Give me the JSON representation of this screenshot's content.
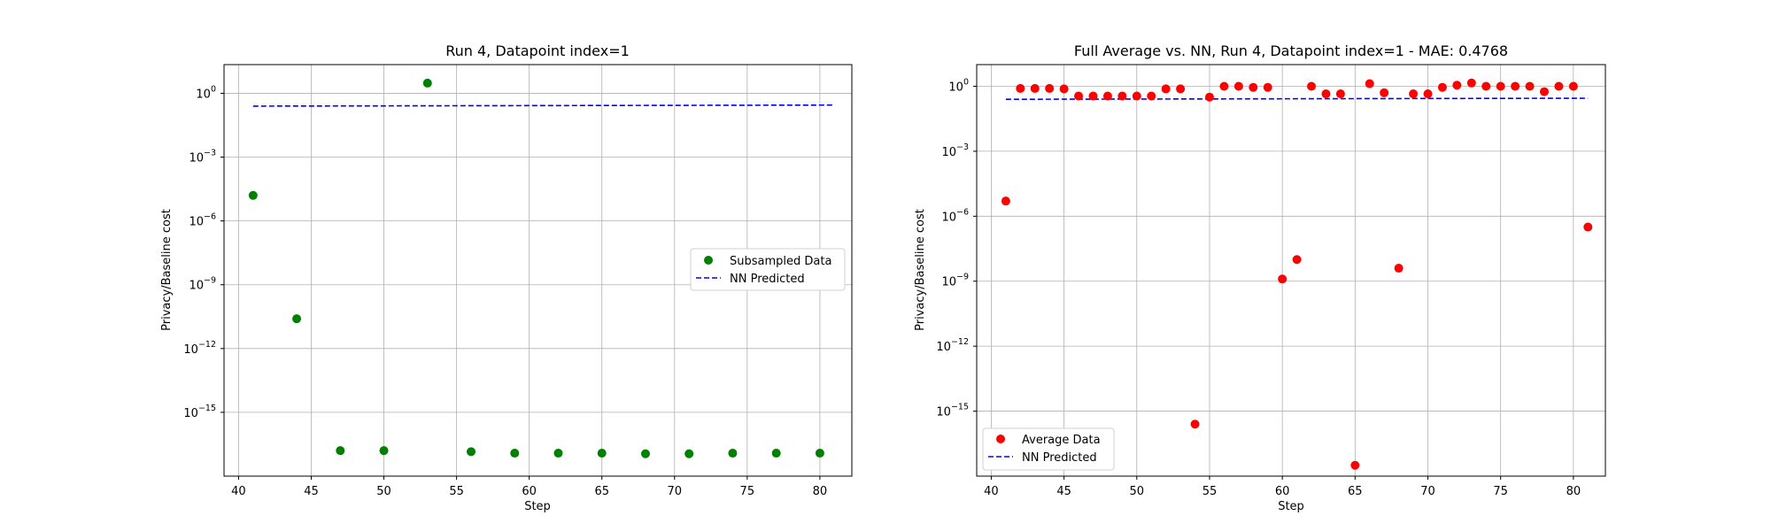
{
  "chart_data": [
    {
      "type": "scatter",
      "title": "Run 4, Datapoint index=1",
      "xlabel": "Step",
      "ylabel": "Privacy/Baseline cost",
      "xlim": [
        39.0,
        82.2
      ],
      "ylim_exp": [
        -18.0,
        1.35
      ],
      "yscale": "log",
      "grid": true,
      "legend_position": "center-right",
      "x_ticks": [
        40,
        45,
        50,
        55,
        60,
        65,
        70,
        75,
        80
      ],
      "y_ticks_exp": [
        0,
        -3,
        -6,
        -9,
        -12,
        -15
      ],
      "y_tick_labels": [
        "10^0",
        "10^-3",
        "10^-6",
        "10^-9",
        "10^-12",
        "10^-15"
      ],
      "scatter": {
        "name": "Subsampled Data",
        "color": "#008000",
        "x": [
          41,
          44,
          47,
          50,
          53,
          56,
          59,
          62,
          65,
          68,
          71,
          74,
          77,
          80
        ],
        "y_exp": [
          -4.8,
          -10.6,
          -16.8,
          -16.8,
          0.48,
          -16.85,
          -16.92,
          -16.92,
          -16.92,
          -16.95,
          -16.95,
          -16.92,
          -16.92,
          -16.92
        ]
      },
      "line": {
        "name": "NN Predicted",
        "color": "#0000ff",
        "x": [
          41,
          81
        ],
        "y": [
          0.25,
          0.28
        ]
      }
    },
    {
      "type": "scatter",
      "title": "Full Average vs. NN, Run 4, Datapoint index=1 - MAE: 0.4768",
      "xlabel": "Step",
      "ylabel": "Privacy/Baseline cost",
      "xlim": [
        39.0,
        82.2
      ],
      "ylim_exp": [
        -18.0,
        1.0
      ],
      "yscale": "log",
      "grid": true,
      "legend_position": "lower-left",
      "x_ticks": [
        40,
        45,
        50,
        55,
        60,
        65,
        70,
        75,
        80
      ],
      "y_ticks_exp": [
        0,
        -3,
        -6,
        -9,
        -12,
        -15
      ],
      "y_tick_labels": [
        "10^0",
        "10^-3",
        "10^-6",
        "10^-9",
        "10^-12",
        "10^-15"
      ],
      "scatter": {
        "name": "Average Data",
        "color": "#ff0000",
        "x": [
          41,
          42,
          43,
          44,
          45,
          46,
          47,
          48,
          49,
          50,
          51,
          52,
          53,
          54,
          55,
          56,
          57,
          58,
          59,
          60,
          61,
          62,
          63,
          64,
          65,
          66,
          67,
          68,
          69,
          70,
          71,
          72,
          73,
          74,
          75,
          76,
          77,
          78,
          79,
          80,
          81
        ],
        "y_exp": [
          -5.3,
          -0.1,
          -0.1,
          -0.1,
          -0.12,
          -0.45,
          -0.45,
          -0.45,
          -0.45,
          -0.45,
          -0.45,
          -0.12,
          -0.12,
          -15.6,
          -0.5,
          0.0,
          0.0,
          -0.05,
          -0.05,
          -8.9,
          -8.0,
          0.0,
          -0.35,
          -0.35,
          -17.5,
          0.12,
          -0.3,
          -8.4,
          -0.35,
          -0.35,
          -0.05,
          0.05,
          0.15,
          0.0,
          0.0,
          0.0,
          0.0,
          -0.25,
          0.0,
          0.0,
          -6.5
        ]
      },
      "line": {
        "name": "NN Predicted",
        "color": "#0000ff",
        "x": [
          41,
          81
        ],
        "y": [
          0.25,
          0.28
        ]
      }
    }
  ]
}
